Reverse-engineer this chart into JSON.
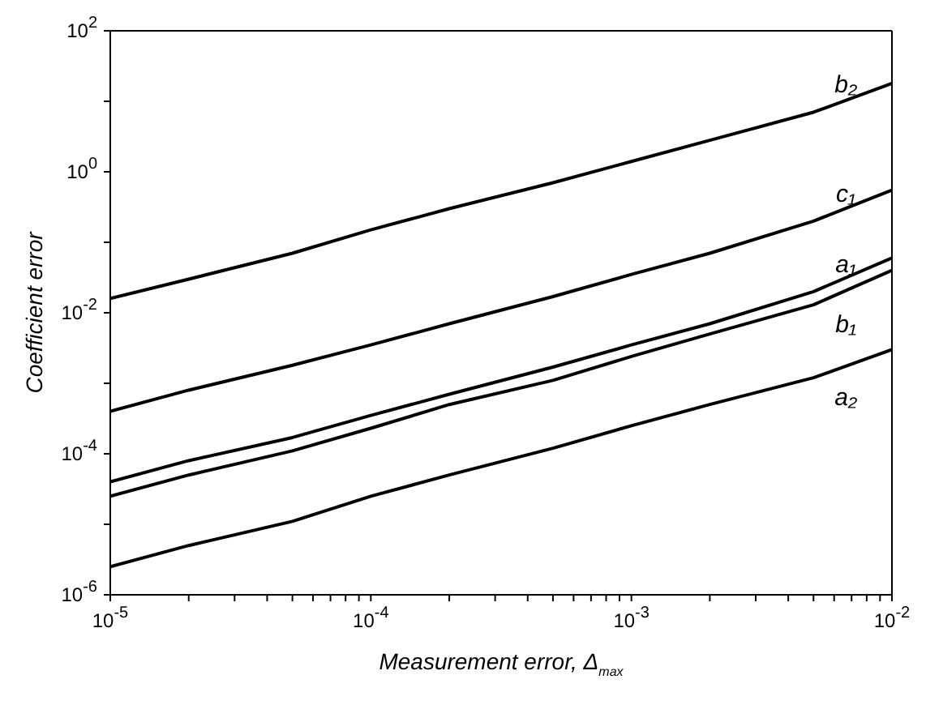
{
  "chart_data": {
    "type": "line",
    "xlabel": "Measurement error, Δ$_{max}$",
    "ylabel": "Coefficient error",
    "log": "xy",
    "marker": "none",
    "line_style": "solid",
    "grid": false,
    "legend": false,
    "x": [
      1e-05,
      2e-05,
      5e-05,
      0.0001,
      0.0002,
      0.0005,
      0.001,
      0.002,
      0.005,
      0.01
    ],
    "xlim": [
      1e-05,
      0.01
    ],
    "ylim": [
      1e-06,
      100
    ],
    "xticks": [
      {
        "value": 1e-05,
        "label": "10$^{-5}$"
      },
      {
        "value": 2e-05,
        "label": null
      },
      {
        "value": 3e-05,
        "label": null
      },
      {
        "value": 4e-05,
        "label": null
      },
      {
        "value": 5e-05,
        "label": null
      },
      {
        "value": 6e-05,
        "label": null
      },
      {
        "value": 7e-05,
        "label": null
      },
      {
        "value": 8e-05,
        "label": null
      },
      {
        "value": 9e-05,
        "label": null
      },
      {
        "value": 0.0001,
        "label": "10$^{-4}$"
      },
      {
        "value": 0.0002,
        "label": null
      },
      {
        "value": 0.0003,
        "label": null
      },
      {
        "value": 0.0004,
        "label": null
      },
      {
        "value": 0.0005,
        "label": null
      },
      {
        "value": 0.0006,
        "label": null
      },
      {
        "value": 0.0007,
        "label": null
      },
      {
        "value": 0.0008,
        "label": null
      },
      {
        "value": 0.0009,
        "label": null
      },
      {
        "value": 0.001,
        "label": "10$^{-3}$"
      },
      {
        "value": 0.002,
        "label": null
      },
      {
        "value": 0.003,
        "label": null
      },
      {
        "value": 0.004,
        "label": null
      },
      {
        "value": 0.005,
        "label": null
      },
      {
        "value": 0.006,
        "label": null
      },
      {
        "value": 0.007,
        "label": null
      },
      {
        "value": 0.008,
        "label": null
      },
      {
        "value": 0.009,
        "label": null
      },
      {
        "value": 0.01,
        "label": "10$^{-2}$"
      }
    ],
    "yticks": [
      {
        "value": 1e-06,
        "label": "10$^{-6}$"
      },
      {
        "value": 1e-05,
        "label": null
      },
      {
        "value": 0.0001,
        "label": "10$^{-4}$"
      },
      {
        "value": 0.001,
        "label": null
      },
      {
        "value": 0.01,
        "label": "10$^{-2}$"
      },
      {
        "value": 0.1,
        "label": null
      },
      {
        "value": 1,
        "label": "10$^{0}$"
      },
      {
        "value": 10,
        "label": null
      },
      {
        "value": 100,
        "label": "10$^{2}$"
      }
    ],
    "series": [
      {
        "name": "b₂",
        "color": "#000000",
        "values": [
          0.016,
          0.03,
          0.07,
          0.15,
          0.3,
          0.7,
          1.4,
          2.8,
          7,
          18
        ]
      },
      {
        "name": "c₁",
        "color": "#000000",
        "values": [
          0.0004,
          0.0008,
          0.0018,
          0.0035,
          0.007,
          0.017,
          0.035,
          0.07,
          0.2,
          0.55
        ]
      },
      {
        "name": "a₁",
        "color": "#000000",
        "values": [
          4e-05,
          8e-05,
          0.00017,
          0.00035,
          0.0007,
          0.0017,
          0.0035,
          0.007,
          0.02,
          0.06
        ]
      },
      {
        "name": "b₁",
        "color": "#000000",
        "values": [
          2.5e-05,
          5e-05,
          0.00011,
          0.00023,
          0.0005,
          0.0011,
          0.0024,
          0.005,
          0.013,
          0.04
        ]
      },
      {
        "name": "a₂",
        "color": "#000000",
        "values": [
          2.5e-06,
          5e-06,
          1.1e-05,
          2.5e-05,
          5e-05,
          0.00012,
          0.00025,
          0.0005,
          0.0012,
          0.003
        ]
      }
    ]
  }
}
